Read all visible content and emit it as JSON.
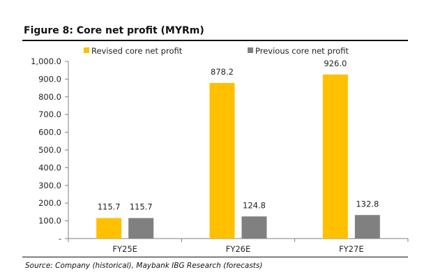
{
  "figure": {
    "title": "Figure 8: Core net profit (MYRm)",
    "source": "Source: Company (historical), Maybank IBG Research (forecasts)"
  },
  "chart_data": {
    "type": "bar",
    "title": "Figure 8: Core net profit (MYRm)",
    "categories": [
      "FY25E",
      "FY26E",
      "FY27E"
    ],
    "series": [
      {
        "name": "Revised core net profit",
        "values": [
          115.7,
          878.2,
          926.0
        ],
        "color": "#FFC000"
      },
      {
        "name": "Previous core net profit",
        "values": [
          115.7,
          124.8,
          132.8
        ],
        "color": "#808080"
      }
    ],
    "ylim": [
      0,
      1000
    ],
    "yticks": [
      0,
      100,
      200,
      300,
      400,
      500,
      600,
      700,
      800,
      900,
      1000
    ],
    "ytick_labels": [
      "-",
      "100.0",
      "200.0",
      "300.0",
      "400.0",
      "500.0",
      "600.0",
      "700.0",
      "800.0",
      "900.0",
      "1,000.0"
    ],
    "data_labels": [
      [
        "115.7",
        "878.2",
        "926.0"
      ],
      [
        "115.7",
        "124.8",
        "132.8"
      ]
    ],
    "legend_position": "top",
    "grid": false
  }
}
